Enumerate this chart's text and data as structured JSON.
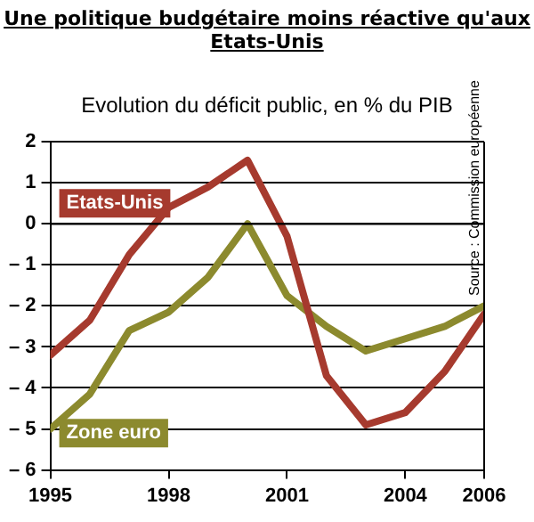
{
  "chart_data": {
    "type": "line",
    "title": "Une politique budgétaire moins réactive qu'aux Etats-Unis",
    "subtitle": "Evolution du déficit public, en % du PIB",
    "x": [
      1995,
      1996,
      1997,
      1998,
      1999,
      2000,
      2001,
      2002,
      2003,
      2004,
      2005,
      2006
    ],
    "series": [
      {
        "name": "Etats-Unis",
        "color": "#a63a2e",
        "values": [
          -3.2,
          -2.35,
          -0.75,
          0.4,
          0.9,
          1.55,
          -0.3,
          -3.7,
          -4.9,
          -4.6,
          -3.6,
          -2.2
        ]
      },
      {
        "name": "Zone euro",
        "color": "#8c8a2e",
        "values": [
          -5.0,
          -4.15,
          -2.6,
          -2.15,
          -1.3,
          0,
          -1.75,
          -2.5,
          -3.1,
          -2.8,
          -2.5,
          -2.0
        ]
      }
    ],
    "xlim": [
      1995,
      2006
    ],
    "xticks": [
      1995,
      1998,
      2001,
      2004,
      2006
    ],
    "ylim": [
      -6,
      2
    ],
    "yticks": [
      {
        "value": -6,
        "label": "– 6"
      },
      {
        "value": -5,
        "label": "– 5"
      },
      {
        "value": -4,
        "label": "– 4"
      },
      {
        "value": -3,
        "label": "– 3"
      },
      {
        "value": -2,
        "label": "– 2"
      },
      {
        "value": -1,
        "label": "– 1"
      },
      0,
      1,
      2
    ],
    "grid": "y",
    "legend": false,
    "marker": "none",
    "line_style": "solid",
    "ref_lines": [
      {
        "axis": "y",
        "value": 0,
        "color": "#000000",
        "line_style": "solid"
      }
    ],
    "annotations": [
      "Source : Commission européenne"
    ]
  }
}
